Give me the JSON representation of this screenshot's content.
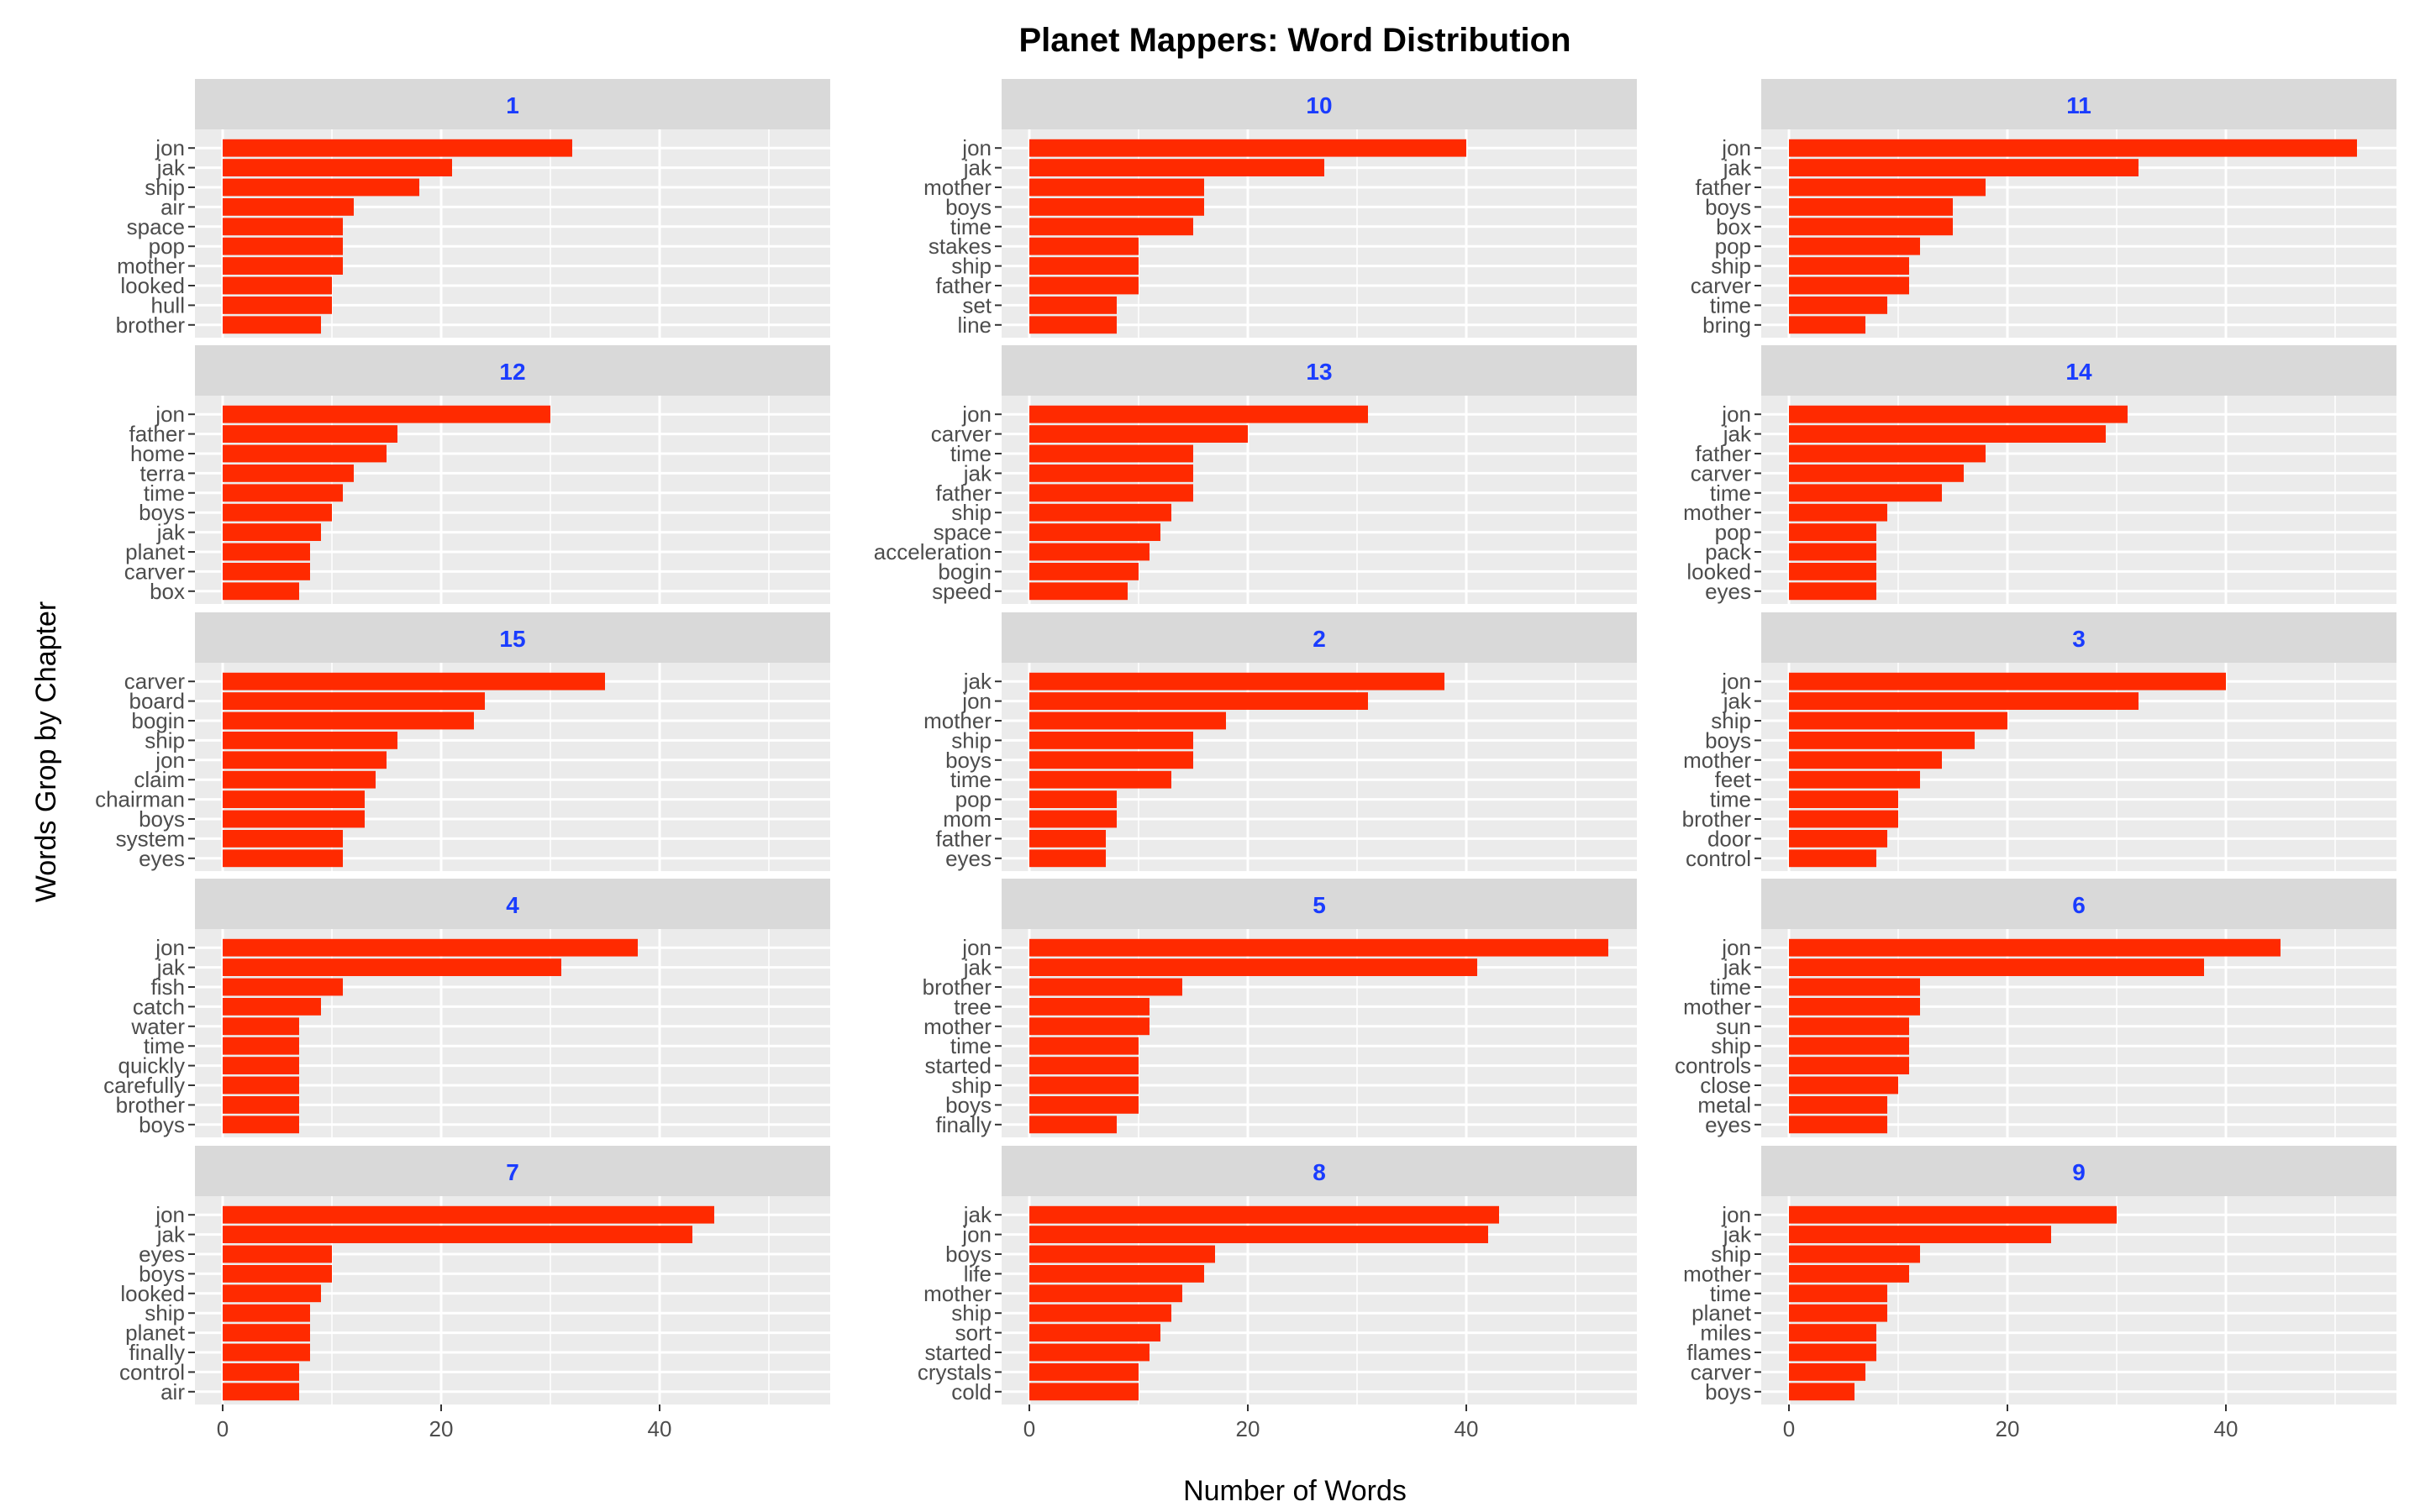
{
  "chart_data": {
    "type": "bar",
    "title": "Planet Mappers: Word Distribution",
    "xlabel": "Number of Words",
    "ylabel": "Words Grop by Chapter",
    "xlim": [
      0,
      55
    ],
    "xticks": [
      0,
      20,
      40
    ],
    "grid": true,
    "colors": {
      "bar": "#ff2a00",
      "panel_bg": "#ebebeb",
      "strip_bg": "#d9d9d9",
      "strip_text": "#1a3cff",
      "grid": "#ffffff",
      "axis_text": "#4d4d4d",
      "title": "#000000"
    },
    "facets": [
      {
        "label": "1",
        "words": [
          "jon",
          "jak",
          "ship",
          "air",
          "space",
          "pop",
          "mother",
          "looked",
          "hull",
          "brother"
        ],
        "values": [
          32,
          21,
          18,
          12,
          11,
          11,
          11,
          10,
          10,
          9
        ]
      },
      {
        "label": "10",
        "words": [
          "jon",
          "jak",
          "mother",
          "boys",
          "time",
          "stakes",
          "ship",
          "father",
          "set",
          "line"
        ],
        "values": [
          40,
          27,
          16,
          16,
          15,
          10,
          10,
          10,
          8,
          8
        ]
      },
      {
        "label": "11",
        "words": [
          "jon",
          "jak",
          "father",
          "boys",
          "box",
          "pop",
          "ship",
          "carver",
          "time",
          "bring"
        ],
        "values": [
          52,
          32,
          18,
          15,
          15,
          12,
          11,
          11,
          9,
          7
        ]
      },
      {
        "label": "12",
        "words": [
          "jon",
          "father",
          "home",
          "terra",
          "time",
          "boys",
          "jak",
          "planet",
          "carver",
          "box"
        ],
        "values": [
          30,
          16,
          15,
          12,
          11,
          10,
          9,
          8,
          8,
          7
        ]
      },
      {
        "label": "13",
        "words": [
          "jon",
          "carver",
          "time",
          "jak",
          "father",
          "ship",
          "space",
          "acceleration",
          "bogin",
          "speed"
        ],
        "values": [
          31,
          20,
          15,
          15,
          15,
          13,
          12,
          11,
          10,
          9
        ]
      },
      {
        "label": "14",
        "words": [
          "jon",
          "jak",
          "father",
          "carver",
          "time",
          "mother",
          "pop",
          "pack",
          "looked",
          "eyes"
        ],
        "values": [
          31,
          29,
          18,
          16,
          14,
          9,
          8,
          8,
          8,
          8
        ]
      },
      {
        "label": "15",
        "words": [
          "carver",
          "board",
          "bogin",
          "ship",
          "jon",
          "claim",
          "chairman",
          "boys",
          "system",
          "eyes"
        ],
        "values": [
          35,
          24,
          23,
          16,
          15,
          14,
          13,
          13,
          11,
          11
        ]
      },
      {
        "label": "2",
        "words": [
          "jak",
          "jon",
          "mother",
          "ship",
          "boys",
          "time",
          "pop",
          "mom",
          "father",
          "eyes"
        ],
        "values": [
          38,
          31,
          18,
          15,
          15,
          13,
          8,
          8,
          7,
          7
        ]
      },
      {
        "label": "3",
        "words": [
          "jon",
          "jak",
          "ship",
          "boys",
          "mother",
          "feet",
          "time",
          "brother",
          "door",
          "control"
        ],
        "values": [
          40,
          32,
          20,
          17,
          14,
          12,
          10,
          10,
          9,
          8
        ]
      },
      {
        "label": "4",
        "words": [
          "jon",
          "jak",
          "fish",
          "catch",
          "water",
          "time",
          "quickly",
          "carefully",
          "brother",
          "boys"
        ],
        "values": [
          38,
          31,
          11,
          9,
          7,
          7,
          7,
          7,
          7,
          7
        ]
      },
      {
        "label": "5",
        "words": [
          "jon",
          "jak",
          "brother",
          "tree",
          "mother",
          "time",
          "started",
          "ship",
          "boys",
          "finally"
        ],
        "values": [
          53,
          41,
          14,
          11,
          11,
          10,
          10,
          10,
          10,
          8
        ]
      },
      {
        "label": "6",
        "words": [
          "jon",
          "jak",
          "time",
          "mother",
          "sun",
          "ship",
          "controls",
          "close",
          "metal",
          "eyes"
        ],
        "values": [
          45,
          38,
          12,
          12,
          11,
          11,
          11,
          10,
          9,
          9
        ]
      },
      {
        "label": "7",
        "words": [
          "jon",
          "jak",
          "eyes",
          "boys",
          "looked",
          "ship",
          "planet",
          "finally",
          "control",
          "air"
        ],
        "values": [
          45,
          43,
          10,
          10,
          9,
          8,
          8,
          8,
          7,
          7
        ]
      },
      {
        "label": "8",
        "words": [
          "jak",
          "jon",
          "boys",
          "life",
          "mother",
          "ship",
          "sort",
          "started",
          "crystals",
          "cold"
        ],
        "values": [
          43,
          42,
          17,
          16,
          14,
          13,
          12,
          11,
          10,
          10
        ]
      },
      {
        "label": "9",
        "words": [
          "jon",
          "jak",
          "ship",
          "mother",
          "time",
          "planet",
          "miles",
          "flames",
          "carver",
          "boys"
        ],
        "values": [
          30,
          24,
          12,
          11,
          9,
          9,
          8,
          8,
          7,
          6
        ]
      }
    ]
  }
}
